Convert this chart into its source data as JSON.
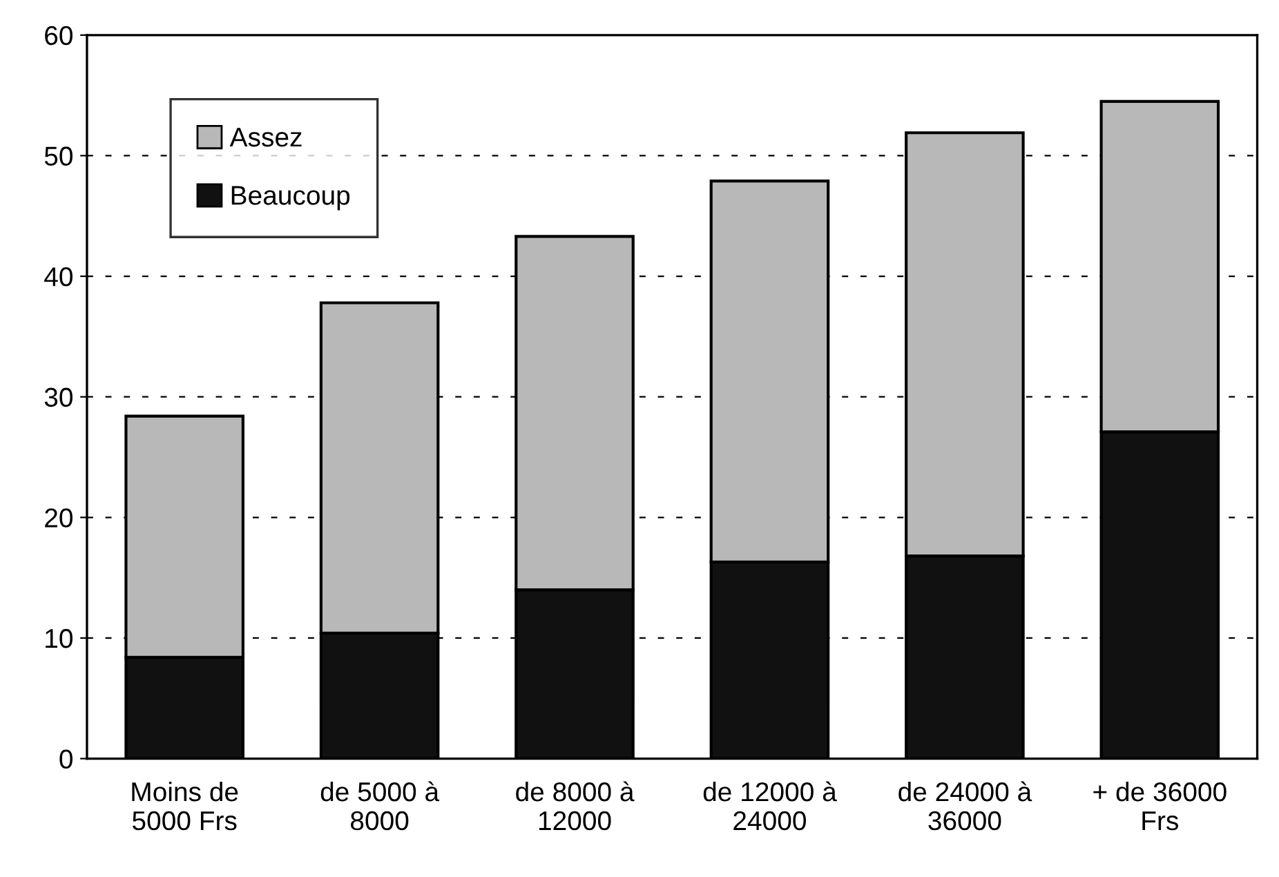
{
  "chart_data": {
    "type": "bar",
    "stacked": true,
    "categories": [
      "Moins de\n5000 Frs",
      "de 5000 à\n8000",
      "de 8000 à\n12000",
      "de 12000 à\n24000",
      "de 24000 à\n36000",
      "+ de 36000\nFrs"
    ],
    "series": [
      {
        "name": "Beaucoup",
        "color": "#111111",
        "values": [
          8.4,
          10.4,
          14.0,
          16.3,
          16.8,
          27.1
        ]
      },
      {
        "name": "Assez",
        "color": "#b8b8b8",
        "values": [
          20.0,
          27.4,
          29.3,
          31.6,
          35.1,
          27.4
        ]
      }
    ],
    "ylim": [
      0,
      60
    ],
    "yticks": [
      0,
      10,
      20,
      30,
      40,
      50,
      60
    ],
    "grid": "y",
    "legend": "top left"
  }
}
